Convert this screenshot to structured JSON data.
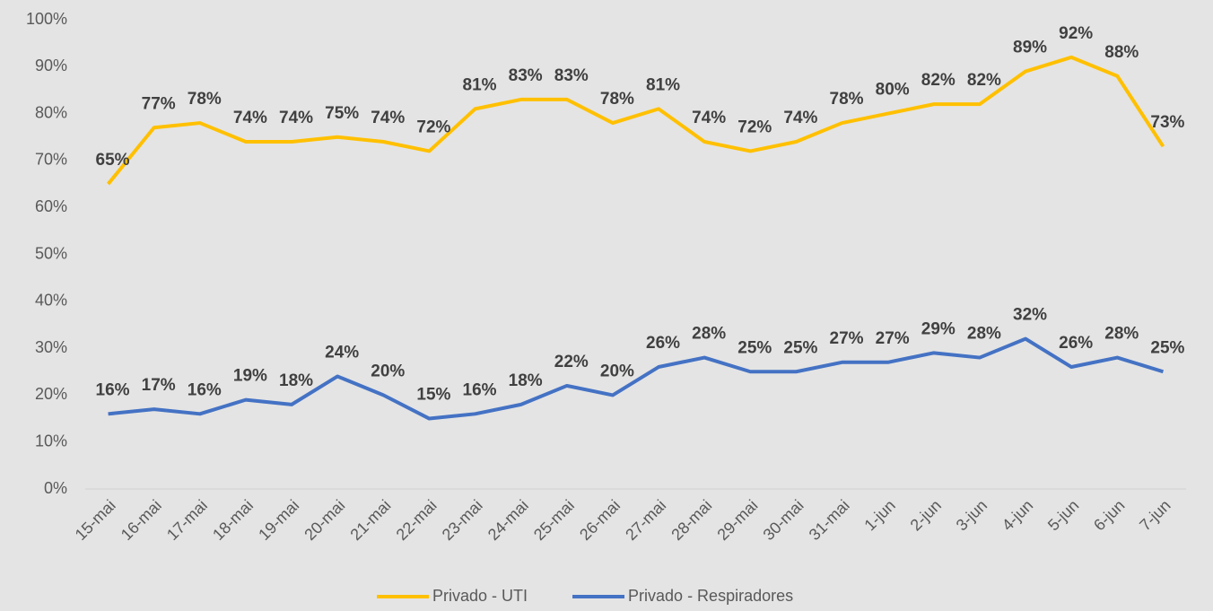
{
  "chart_data": {
    "type": "line",
    "categories": [
      "15-mai",
      "16-mai",
      "17-mai",
      "18-mai",
      "19-mai",
      "20-mai",
      "21-mai",
      "22-mai",
      "23-mai",
      "24-mai",
      "25-mai",
      "26-mai",
      "27-mai",
      "28-mai",
      "29-mai",
      "30-mai",
      "31-mai",
      "1-jun",
      "2-jun",
      "3-jun",
      "4-jun",
      "5-jun",
      "6-jun",
      "7-jun"
    ],
    "series": [
      {
        "name": "Privado - UTI",
        "color": "#ffc000",
        "values": [
          65,
          77,
          78,
          74,
          74,
          75,
          74,
          72,
          81,
          83,
          83,
          78,
          81,
          74,
          72,
          74,
          78,
          80,
          82,
          82,
          89,
          92,
          88,
          73
        ],
        "value_labels": [
          "65%",
          "77%",
          "78%",
          "74%",
          "74%",
          "75%",
          "74%",
          "72%",
          "81%",
          "83%",
          "83%",
          "78%",
          "81%",
          "74%",
          "72%",
          "74%",
          "78%",
          "80%",
          "82%",
          "82%",
          "89%",
          "92%",
          "88%",
          "73%"
        ]
      },
      {
        "name": "Privado - Respiradores",
        "color": "#4472c4",
        "values": [
          16,
          17,
          16,
          19,
          18,
          24,
          20,
          15,
          16,
          18,
          22,
          20,
          26,
          28,
          25,
          25,
          27,
          27,
          29,
          28,
          32,
          26,
          28,
          25
        ],
        "value_labels": [
          "16%",
          "17%",
          "16%",
          "19%",
          "18%",
          "24%",
          "20%",
          "15%",
          "16%",
          "18%",
          "22%",
          "20%",
          "26%",
          "28%",
          "25%",
          "25%",
          "27%",
          "27%",
          "29%",
          "28%",
          "32%",
          "26%",
          "28%",
          "25%"
        ]
      }
    ],
    "ylim": [
      0,
      100
    ],
    "yticks": [
      {
        "value": 0,
        "label": "0%"
      },
      {
        "value": 10,
        "label": "10%"
      },
      {
        "value": 20,
        "label": "20%"
      },
      {
        "value": 30,
        "label": "30%"
      },
      {
        "value": 40,
        "label": "40%"
      },
      {
        "value": 50,
        "label": "50%"
      },
      {
        "value": 60,
        "label": "60%"
      },
      {
        "value": 70,
        "label": "70%"
      },
      {
        "value": 80,
        "label": "80%"
      },
      {
        "value": 90,
        "label": "90%"
      },
      {
        "value": 100,
        "label": "100%"
      }
    ],
    "grid": false,
    "legend": "bottom"
  }
}
